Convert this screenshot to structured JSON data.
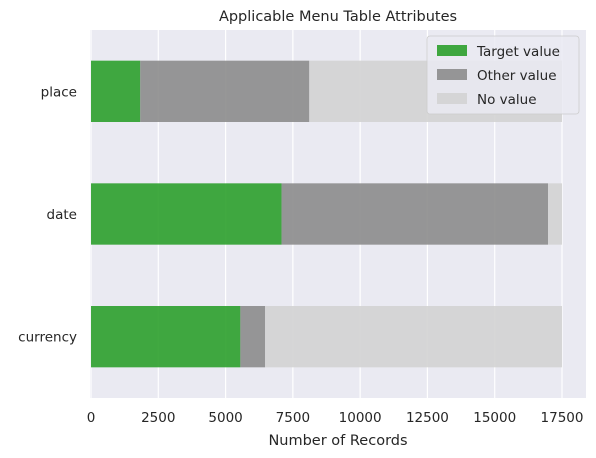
{
  "chart_data": {
    "type": "bar",
    "orientation": "horizontal",
    "stacked": true,
    "title": "Applicable Menu Table Attributes",
    "xlabel": "Number of Records",
    "ylabel": "",
    "categories": [
      "currency",
      "date",
      "place"
    ],
    "series": [
      {
        "name": "Target value",
        "color": "#2ca02c",
        "values": [
          5550,
          7080,
          1830
        ]
      },
      {
        "name": "Other value",
        "color": "#8c8c8c",
        "values": [
          920,
          9900,
          6280
        ]
      },
      {
        "name": "No value",
        "color": "#d3d3d3",
        "values": [
          11030,
          520,
          9390
        ]
      }
    ],
    "xlim": [
      0,
      18000
    ],
    "xticks": [
      0,
      2500,
      5000,
      7500,
      10000,
      12500,
      15000,
      17500
    ],
    "xtick_labels": [
      "0",
      "2500",
      "5000",
      "7500",
      "10000",
      "12500",
      "15000",
      "17500"
    ],
    "grid": true,
    "legend_position": "top-right",
    "background": "#eaeaf2"
  }
}
